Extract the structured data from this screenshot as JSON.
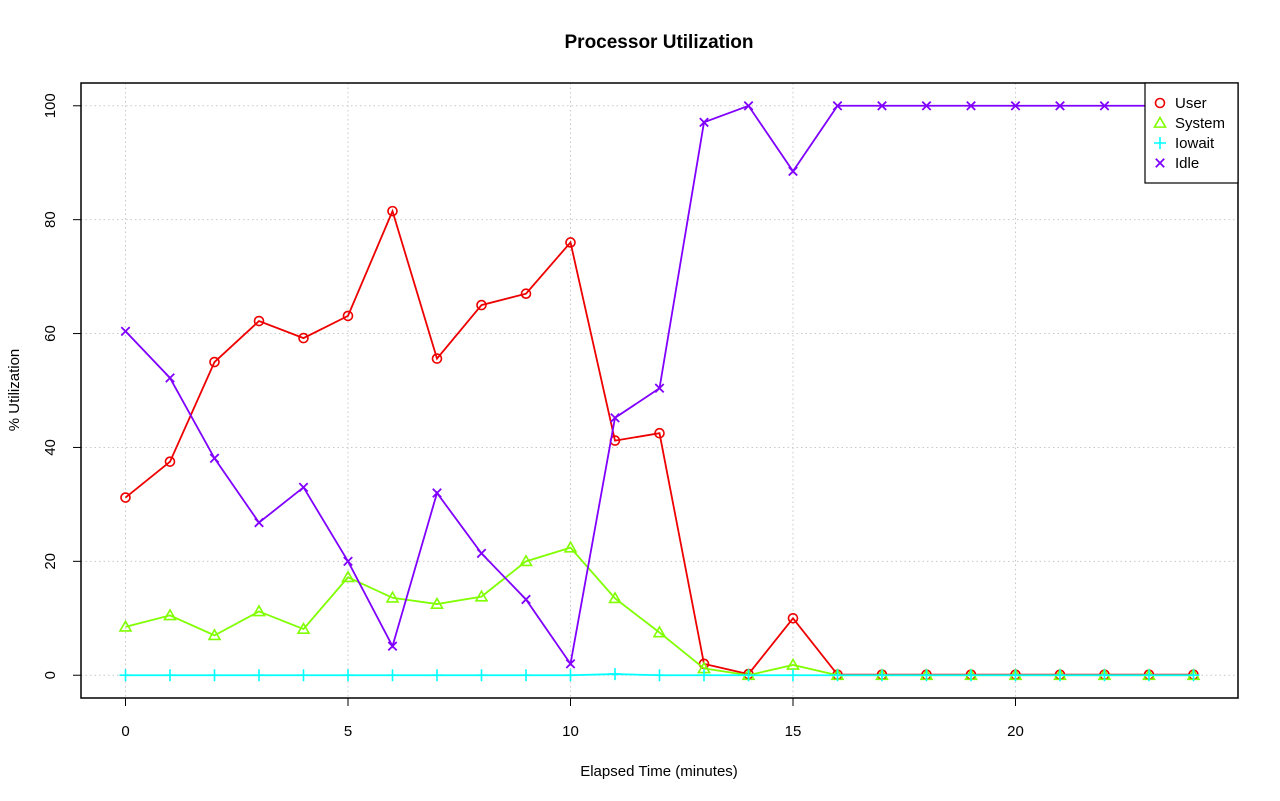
{
  "chart_data": {
    "type": "line",
    "title": "Processor Utilization",
    "xlabel": "Elapsed Time (minutes)",
    "ylabel": "% Utilization",
    "xlim": [
      -1,
      25
    ],
    "ylim": [
      -4,
      104
    ],
    "x_ticks": [
      0,
      5,
      10,
      15,
      20
    ],
    "y_ticks": [
      0,
      20,
      40,
      60,
      80,
      100
    ],
    "grid": true,
    "legend_position": "top-right",
    "x": [
      0,
      1,
      2,
      3,
      4,
      5,
      6,
      7,
      8,
      9,
      10,
      11,
      12,
      13,
      14,
      15,
      16,
      17,
      18,
      19,
      20,
      21,
      22,
      23,
      24
    ],
    "series": [
      {
        "name": "User",
        "color": "#ee0000",
        "marker": "circle",
        "values": [
          31.2,
          37.5,
          55.0,
          62.2,
          59.2,
          63.1,
          81.5,
          55.6,
          65.0,
          67.0,
          76.0,
          41.2,
          42.5,
          2.0,
          0.2,
          10.0,
          0.1,
          0.1,
          0.1,
          0.1,
          0.1,
          0.1,
          0.1,
          0.1,
          0.1
        ]
      },
      {
        "name": "System",
        "color": "#80ff00",
        "marker": "triangle",
        "values": [
          8.5,
          10.5,
          7.0,
          11.2,
          8.1,
          17.2,
          13.6,
          12.5,
          13.8,
          20.0,
          22.4,
          13.5,
          7.5,
          1.2,
          0.0,
          1.8,
          0.0,
          0.0,
          0.0,
          0.0,
          0.0,
          0.0,
          0.0,
          0.0,
          0.0
        ]
      },
      {
        "name": "Iowait",
        "color": "#00ffff",
        "marker": "plus",
        "values": [
          0.0,
          0.0,
          0.0,
          0.0,
          0.0,
          0.0,
          0.0,
          0.0,
          0.0,
          0.0,
          0.0,
          0.2,
          0.0,
          0.0,
          0.0,
          0.0,
          0.0,
          0.0,
          0.0,
          0.0,
          0.0,
          0.0,
          0.0,
          0.0,
          0.0
        ]
      },
      {
        "name": "Idle",
        "color": "#8000ff",
        "marker": "cross",
        "values": [
          60.4,
          52.2,
          38.1,
          26.8,
          33.0,
          20.0,
          5.1,
          32.0,
          21.4,
          13.3,
          2.0,
          45.2,
          50.4,
          97.1,
          100.0,
          88.5,
          100.0,
          100.0,
          100.0,
          100.0,
          100.0,
          100.0,
          100.0,
          100.0,
          100.0
        ]
      }
    ]
  }
}
